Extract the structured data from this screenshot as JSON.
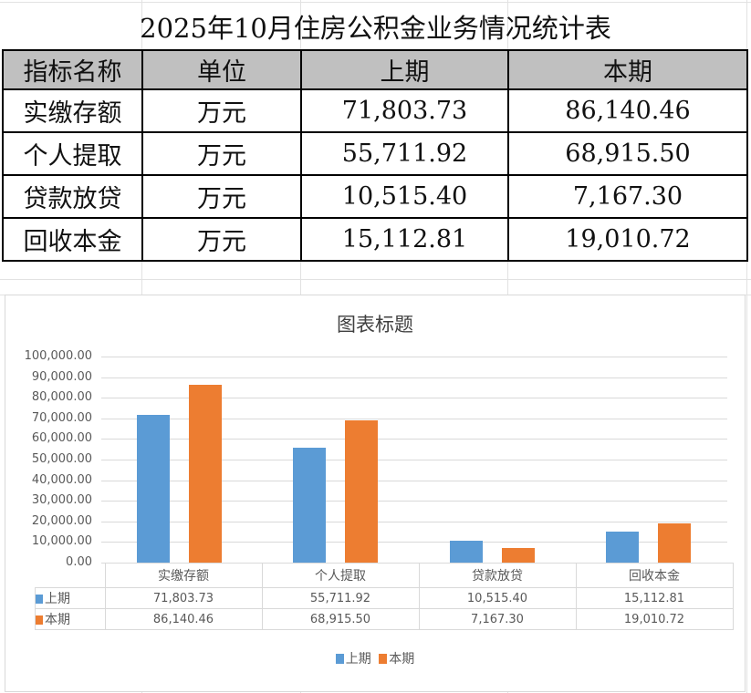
{
  "sheet": {
    "title": "2025年10月住房公积金业务情况统计表",
    "headers": [
      "指标名称",
      "单位",
      "上期",
      "本期"
    ],
    "rows": [
      {
        "name": "实缴存额",
        "unit": "万元",
        "prev": "71,803.73",
        "curr": "86,140.46"
      },
      {
        "name": "个人提取",
        "unit": "万元",
        "prev": "55,711.92",
        "curr": "68,915.50"
      },
      {
        "name": "贷款放贷",
        "unit": "万元",
        "prev": "10,515.40",
        "curr": "7,167.30"
      },
      {
        "name": "回收本金",
        "unit": "万元",
        "prev": "15,112.81",
        "curr": "19,010.72"
      }
    ]
  },
  "chart_data": {
    "type": "bar",
    "title": "图表标题",
    "categories": [
      "实缴存额",
      "个人提取",
      "贷款放贷",
      "回收本金"
    ],
    "series": [
      {
        "name": "上期",
        "color": "#5b9bd5",
        "values": [
          71803.73,
          55711.92,
          10515.4,
          15112.81
        ],
        "labels": [
          "71,803.73",
          "55,711.92",
          "10,515.40",
          "15,112.81"
        ]
      },
      {
        "name": "本期",
        "color": "#ed7d31",
        "values": [
          86140.46,
          68915.5,
          7167.3,
          19010.72
        ],
        "labels": [
          "86,140.46",
          "68,915.50",
          "7,167.30",
          "19,010.72"
        ]
      }
    ],
    "yticks": [
      "100,000.00",
      "90,000.00",
      "80,000.00",
      "70,000.00",
      "60,000.00",
      "50,000.00",
      "40,000.00",
      "30,000.00",
      "20,000.00",
      "10,000.00",
      "0.00"
    ],
    "ylim": [
      0,
      100000
    ],
    "xlabel": "",
    "ylabel": "",
    "grid": true,
    "legend_position": "bottom",
    "data_table": true
  }
}
